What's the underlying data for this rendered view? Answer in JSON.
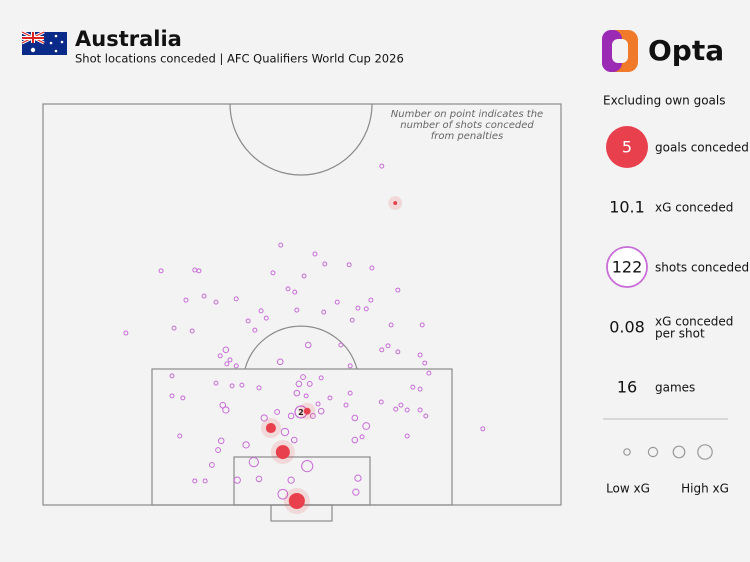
{
  "header": {
    "title": "Australia",
    "subtitle": "Shot locations conceded | AFC Qualifiers World Cup 2026"
  },
  "brand": "Opta",
  "chart_data": {
    "type": "scatter",
    "note": [
      "Number on point indicates the",
      "number of shots conceded",
      "from penalties"
    ],
    "xlim": [
      0,
      100
    ],
    "ylim": [
      0,
      100
    ],
    "shot_color": "#c86dd7",
    "goal_color": "#e8404c",
    "shots": [
      {
        "x": 65.4,
        "y": 84.5,
        "xg": 0.02
      },
      {
        "x": 45.9,
        "y": 64.8,
        "xg": 0.02
      },
      {
        "x": 52.5,
        "y": 62.6,
        "xg": 0.02
      },
      {
        "x": 54.4,
        "y": 60.1,
        "xg": 0.02
      },
      {
        "x": 22.8,
        "y": 58.4,
        "xg": 0.02
      },
      {
        "x": 29.3,
        "y": 58.6,
        "xg": 0.02
      },
      {
        "x": 30.1,
        "y": 58.4,
        "xg": 0.02
      },
      {
        "x": 44.4,
        "y": 57.9,
        "xg": 0.02
      },
      {
        "x": 59.1,
        "y": 59.9,
        "xg": 0.02
      },
      {
        "x": 63.5,
        "y": 59.1,
        "xg": 0.02
      },
      {
        "x": 50.4,
        "y": 57.1,
        "xg": 0.02
      },
      {
        "x": 47.3,
        "y": 53.9,
        "xg": 0.02
      },
      {
        "x": 48.6,
        "y": 53.1,
        "xg": 0.02
      },
      {
        "x": 31.1,
        "y": 52.1,
        "xg": 0.02
      },
      {
        "x": 68.5,
        "y": 53.6,
        "xg": 0.02
      },
      {
        "x": 27.6,
        "y": 51.1,
        "xg": 0.02
      },
      {
        "x": 33.4,
        "y": 50.6,
        "xg": 0.02
      },
      {
        "x": 37.3,
        "y": 51.4,
        "xg": 0.02
      },
      {
        "x": 42.1,
        "y": 48.4,
        "xg": 0.02
      },
      {
        "x": 49.0,
        "y": 48.6,
        "xg": 0.02
      },
      {
        "x": 54.2,
        "y": 48.1,
        "xg": 0.02
      },
      {
        "x": 60.8,
        "y": 49.1,
        "xg": 0.02
      },
      {
        "x": 63.3,
        "y": 51.1,
        "xg": 0.02
      },
      {
        "x": 56.8,
        "y": 50.6,
        "xg": 0.02
      },
      {
        "x": 62.4,
        "y": 48.9,
        "xg": 0.02
      },
      {
        "x": 39.6,
        "y": 45.9,
        "xg": 0.02
      },
      {
        "x": 43.1,
        "y": 46.6,
        "xg": 0.02
      },
      {
        "x": 59.7,
        "y": 46.1,
        "xg": 0.02
      },
      {
        "x": 67.2,
        "y": 44.9,
        "xg": 0.02
      },
      {
        "x": 73.2,
        "y": 44.9,
        "xg": 0.02
      },
      {
        "x": 16.0,
        "y": 42.9,
        "xg": 0.02
      },
      {
        "x": 25.3,
        "y": 44.1,
        "xg": 0.02
      },
      {
        "x": 28.8,
        "y": 43.4,
        "xg": 0.02
      },
      {
        "x": 40.9,
        "y": 43.6,
        "xg": 0.02
      },
      {
        "x": 57.5,
        "y": 39.9,
        "xg": 0.02
      },
      {
        "x": 51.2,
        "y": 39.9,
        "xg": 0.04
      },
      {
        "x": 66.6,
        "y": 39.7,
        "xg": 0.02
      },
      {
        "x": 65.4,
        "y": 38.7,
        "xg": 0.02
      },
      {
        "x": 68.5,
        "y": 38.2,
        "xg": 0.02
      },
      {
        "x": 72.8,
        "y": 37.4,
        "xg": 0.02
      },
      {
        "x": 34.2,
        "y": 37.2,
        "xg": 0.02
      },
      {
        "x": 36.1,
        "y": 36.2,
        "xg": 0.02
      },
      {
        "x": 35.3,
        "y": 38.7,
        "xg": 0.04
      },
      {
        "x": 35.5,
        "y": 35.2,
        "xg": 0.02
      },
      {
        "x": 37.3,
        "y": 34.7,
        "xg": 0.02
      },
      {
        "x": 45.8,
        "y": 35.7,
        "xg": 0.04
      },
      {
        "x": 73.7,
        "y": 35.4,
        "xg": 0.02
      },
      {
        "x": 74.5,
        "y": 32.9,
        "xg": 0.02
      },
      {
        "x": 24.9,
        "y": 32.2,
        "xg": 0.02
      },
      {
        "x": 33.4,
        "y": 30.4,
        "xg": 0.02
      },
      {
        "x": 38.4,
        "y": 29.9,
        "xg": 0.02
      },
      {
        "x": 36.5,
        "y": 29.7,
        "xg": 0.02
      },
      {
        "x": 50.2,
        "y": 31.9,
        "xg": 0.03
      },
      {
        "x": 49.4,
        "y": 30.2,
        "xg": 0.04
      },
      {
        "x": 53.7,
        "y": 31.7,
        "xg": 0.02
      },
      {
        "x": 59.3,
        "y": 34.7,
        "xg": 0.02
      },
      {
        "x": 71.4,
        "y": 29.4,
        "xg": 0.02
      },
      {
        "x": 72.8,
        "y": 28.9,
        "xg": 0.02
      },
      {
        "x": 41.7,
        "y": 29.2,
        "xg": 0.02
      },
      {
        "x": 49.0,
        "y": 27.9,
        "xg": 0.04
      },
      {
        "x": 51.5,
        "y": 30.2,
        "xg": 0.03
      },
      {
        "x": 50.8,
        "y": 27.2,
        "xg": 0.02
      },
      {
        "x": 59.3,
        "y": 27.9,
        "xg": 0.02
      },
      {
        "x": 24.9,
        "y": 27.2,
        "xg": 0.02
      },
      {
        "x": 27.0,
        "y": 26.7,
        "xg": 0.02
      },
      {
        "x": 53.1,
        "y": 25.2,
        "xg": 0.02
      },
      {
        "x": 55.4,
        "y": 26.7,
        "xg": 0.02
      },
      {
        "x": 53.7,
        "y": 23.4,
        "xg": 0.04
      },
      {
        "x": 58.5,
        "y": 24.9,
        "xg": 0.02
      },
      {
        "x": 65.3,
        "y": 25.7,
        "xg": 0.02
      },
      {
        "x": 69.1,
        "y": 24.9,
        "xg": 0.02
      },
      {
        "x": 68.1,
        "y": 23.9,
        "xg": 0.02
      },
      {
        "x": 70.3,
        "y": 23.7,
        "xg": 0.02
      },
      {
        "x": 72.8,
        "y": 23.7,
        "xg": 0.02
      },
      {
        "x": 73.9,
        "y": 22.2,
        "xg": 0.02
      },
      {
        "x": 34.7,
        "y": 24.9,
        "xg": 0.04
      },
      {
        "x": 35.3,
        "y": 23.7,
        "xg": 0.05
      },
      {
        "x": 45.2,
        "y": 23.2,
        "xg": 0.03
      },
      {
        "x": 42.7,
        "y": 21.7,
        "xg": 0.05
      },
      {
        "x": 47.9,
        "y": 22.2,
        "xg": 0.04
      },
      {
        "x": 60.2,
        "y": 21.7,
        "xg": 0.04
      },
      {
        "x": 52.1,
        "y": 22.2,
        "xg": 0.03
      },
      {
        "x": 62.4,
        "y": 19.7,
        "xg": 0.06
      },
      {
        "x": 60.2,
        "y": 16.2,
        "xg": 0.04
      },
      {
        "x": 61.6,
        "y": 17.0,
        "xg": 0.02
      },
      {
        "x": 26.4,
        "y": 17.2,
        "xg": 0.02
      },
      {
        "x": 46.7,
        "y": 18.2,
        "xg": 0.07
      },
      {
        "x": 48.5,
        "y": 16.2,
        "xg": 0.04
      },
      {
        "x": 70.3,
        "y": 17.2,
        "xg": 0.02
      },
      {
        "x": 84.9,
        "y": 19.0,
        "xg": 0.02
      },
      {
        "x": 34.4,
        "y": 16.0,
        "xg": 0.04
      },
      {
        "x": 39.2,
        "y": 15.0,
        "xg": 0.05
      },
      {
        "x": 33.8,
        "y": 13.7,
        "xg": 0.03
      },
      {
        "x": 32.6,
        "y": 10.0,
        "xg": 0.03
      },
      {
        "x": 40.7,
        "y": 10.7,
        "xg": 0.11
      },
      {
        "x": 51.0,
        "y": 9.7,
        "xg": 0.16
      },
      {
        "x": 31.3,
        "y": 6.0,
        "xg": 0.02
      },
      {
        "x": 29.3,
        "y": 6.0,
        "xg": 0.02
      },
      {
        "x": 37.5,
        "y": 6.2,
        "xg": 0.05
      },
      {
        "x": 41.7,
        "y": 6.5,
        "xg": 0.04
      },
      {
        "x": 60.8,
        "y": 6.7,
        "xg": 0.05
      },
      {
        "x": 60.4,
        "y": 3.2,
        "xg": 0.05
      },
      {
        "x": 46.3,
        "y": 2.7,
        "xg": 0.12
      },
      {
        "x": 47.9,
        "y": 6.2,
        "xg": 0.05
      }
    ],
    "penalty": {
      "x": 49.8,
      "y": 23.2,
      "xg": 0.18,
      "label": "2"
    },
    "goals": [
      {
        "x": 68.0,
        "y": 75.3,
        "xg": 0.02
      },
      {
        "x": 44.0,
        "y": 19.2,
        "xg": 0.13
      },
      {
        "x": 46.3,
        "y": 13.2,
        "xg": 0.25
      },
      {
        "x": 49.0,
        "y": 1.0,
        "xg": 0.33
      },
      {
        "x": 51.0,
        "y": 23.4,
        "xg": 0.06
      }
    ]
  },
  "sidebar": {
    "heading": "Excluding own goals",
    "stats": [
      {
        "value": 5,
        "label": "goals conceded"
      },
      {
        "value": 10.1,
        "label": "xG conceded"
      },
      {
        "value": 122,
        "label": "shots conceded"
      },
      {
        "value": 0.08,
        "label": [
          "xG conceded",
          "per shot"
        ]
      },
      {
        "value": 16,
        "label": "games"
      }
    ],
    "legend": {
      "low": "Low xG",
      "high": "High xG"
    }
  }
}
